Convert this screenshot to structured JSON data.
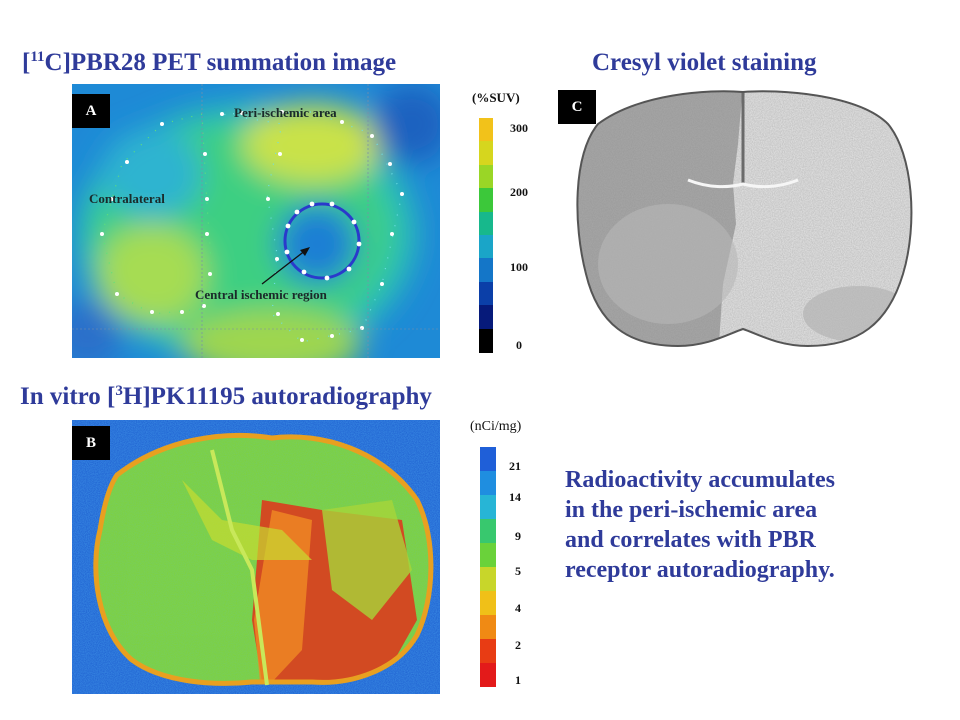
{
  "titles": {
    "pet_prefix": "[",
    "pet_sup": "11",
    "pet_main": "C]PBR28 PET summation image",
    "cresyl": "Cresyl violet staining",
    "invitro_prefix": "In vitro [",
    "invitro_sup": "3",
    "invitro_main": "H]PK11195 autoradiography"
  },
  "panel_a": {
    "tag": "A",
    "labels": {
      "peri": "Peri-ischemic area",
      "contralateral": "Contralateral",
      "central": "Central ischemic region"
    }
  },
  "panel_b": {
    "tag": "B"
  },
  "panel_c": {
    "tag": "C"
  },
  "scale_suv": {
    "unit": "(%SUV)",
    "ticks": [
      "300",
      "200",
      "100",
      "0"
    ],
    "colors": [
      "#f2c21a",
      "#d6d61e",
      "#9ad626",
      "#3cc83a",
      "#17b88c",
      "#1aa5c8",
      "#1476c8",
      "#0b3fa8",
      "#061a7a",
      "#000000"
    ]
  },
  "scale_nci": {
    "unit": "(nCi/mg)",
    "ticks": [
      "21",
      "14",
      "9",
      "5",
      "4",
      "2",
      "1"
    ],
    "colors": [
      "#1f5fd8",
      "#1f8ee0",
      "#27b5d6",
      "#38c86e",
      "#6ad23a",
      "#c8d62a",
      "#f0c018",
      "#f08a14",
      "#e83c14",
      "#e31a1a"
    ]
  },
  "caption": {
    "line1": "Radioactivity accumulates",
    "line2": "in the peri-ischemic area",
    "line3": "and correlates with PBR",
    "line4": "receptor autoradiography."
  }
}
